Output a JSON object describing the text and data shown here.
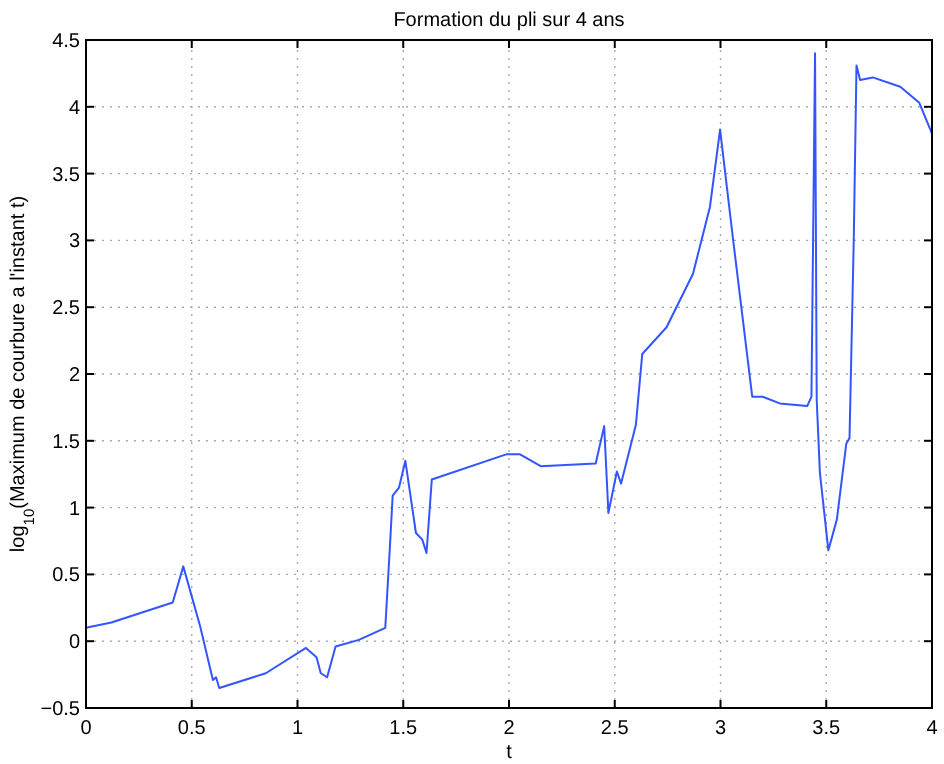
{
  "chart_data": {
    "type": "line",
    "title": "Formation du pli sur 4 ans",
    "xlabel": "t",
    "ylabel": "log$_{10}$(Maximum de courbure a l'instant t)",
    "xlim": [
      0,
      4
    ],
    "xticks": [
      0,
      0.5,
      1,
      1.5,
      2,
      2.5,
      3,
      3.5,
      4
    ],
    "ylim": [
      -0.5,
      4.5
    ],
    "yticks": [
      -0.5,
      0,
      0.5,
      1,
      1.5,
      2,
      2.5,
      3,
      3.5,
      4,
      4.5
    ],
    "grid": true,
    "line_style": "solid",
    "marker": "none",
    "series": [
      {
        "color": "#3355ff",
        "x": [
          0,
          0.12,
          0.41,
          0.46,
          0.54,
          0.6,
          0.615,
          0.63,
          0.85,
          1.04,
          1.09,
          1.11,
          1.14,
          1.18,
          1.29,
          1.415,
          1.437,
          1.45,
          1.48,
          1.51,
          1.56,
          1.59,
          1.61,
          1.635,
          1.99,
          2.05,
          2.15,
          2.41,
          2.45,
          2.47,
          2.51,
          2.53,
          2.6,
          2.63,
          2.745,
          2.87,
          2.95,
          2.998,
          3.06,
          3.15,
          3.2,
          3.28,
          3.41,
          3.43,
          3.447,
          3.455,
          3.47,
          3.51,
          3.55,
          3.595,
          3.61,
          3.63,
          3.643,
          3.66,
          3.72,
          3.85,
          3.94,
          4.0
        ],
        "values": [
          0.1,
          0.14,
          0.29,
          0.56,
          0.11,
          -0.29,
          -0.27,
          -0.35,
          -0.24,
          -0.05,
          -0.12,
          -0.24,
          -0.27,
          -0.04,
          0.01,
          0.1,
          0.71,
          1.09,
          1.15,
          1.35,
          0.81,
          0.76,
          0.66,
          1.21,
          1.4,
          1.4,
          1.31,
          1.33,
          1.61,
          0.96,
          1.27,
          1.18,
          1.62,
          2.15,
          2.35,
          2.75,
          3.25,
          3.83,
          3.0,
          1.83,
          1.83,
          1.78,
          1.76,
          1.83,
          4.4,
          1.8,
          1.26,
          0.68,
          0.91,
          1.48,
          1.52,
          3.0,
          4.31,
          4.2,
          4.22,
          4.15,
          4.03,
          3.8
        ]
      }
    ]
  }
}
